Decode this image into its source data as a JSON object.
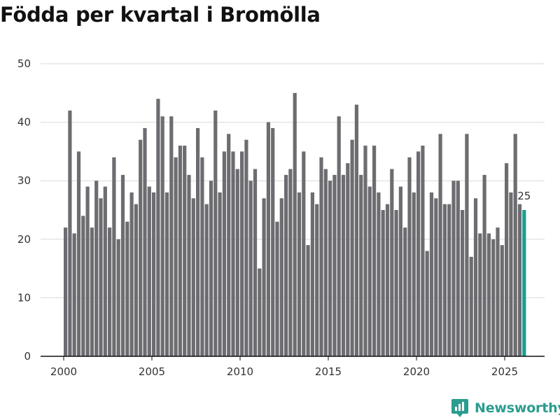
{
  "chart_data": {
    "type": "bar",
    "title": "Födda per kvartal i Bromölla",
    "xlabel": "",
    "ylabel": "",
    "ylim": [
      0,
      50
    ],
    "yticks": [
      0,
      10,
      20,
      30,
      40,
      50
    ],
    "xticks": [
      2000,
      2005,
      2010,
      2015,
      2020,
      2025
    ],
    "x_start": 2000,
    "bar_color": "#6d6c71",
    "highlight_color": "#1a9e8f",
    "highlight_label": "25",
    "values": [
      22,
      42,
      21,
      35,
      24,
      29,
      22,
      30,
      27,
      29,
      22,
      34,
      20,
      31,
      23,
      28,
      26,
      37,
      39,
      29,
      28,
      44,
      41,
      28,
      41,
      34,
      36,
      36,
      31,
      27,
      39,
      34,
      26,
      30,
      42,
      28,
      35,
      38,
      35,
      32,
      35,
      37,
      30,
      32,
      15,
      27,
      40,
      39,
      23,
      27,
      31,
      32,
      45,
      28,
      35,
      19,
      28,
      26,
      34,
      32,
      30,
      31,
      41,
      31,
      33,
      37,
      43,
      31,
      36,
      29,
      36,
      28,
      25,
      26,
      32,
      25,
      29,
      22,
      34,
      28,
      35,
      36,
      18,
      28,
      27,
      38,
      26,
      26,
      30,
      30,
      25,
      38,
      17,
      27,
      21,
      31,
      21,
      20,
      22,
      19,
      33,
      28,
      38,
      26,
      25
    ]
  },
  "brand": {
    "name": "Newsworthy",
    "icon": "newsworthy-logo-icon",
    "color": "#2a9d8f"
  }
}
